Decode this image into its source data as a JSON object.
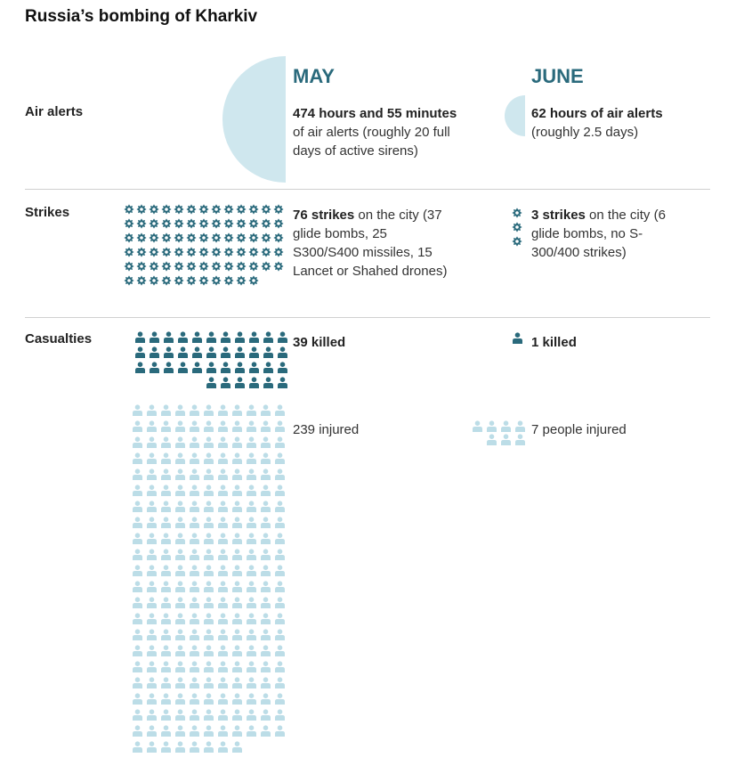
{
  "title": "Russia’s bombing of Kharkiv",
  "months": [
    "MAY",
    "JUNE"
  ],
  "rows": {
    "air_alerts": {
      "label": "Air alerts",
      "may": {
        "bold": "474 hours and 55 minutes",
        "rest": " of air alerts (roughly 20 full days of active sirens)"
      },
      "june": {
        "bold": "62 hours of air alerts",
        "rest": " (roughly 2.5 days)"
      }
    },
    "strikes": {
      "label": "Strikes",
      "may": {
        "bold": "76 strikes",
        "rest": " on the city (37 glide bombs, 25 S300/S400 missiles, 15 Lancet or Shahed drones)"
      },
      "june": {
        "bold": "3 strikes",
        "rest": " on the city (6 glide bombs, no S-300/400 strikes)"
      }
    },
    "casualties": {
      "label": "Casualties",
      "may_killed": "39 killed",
      "may_injured": "239 injured",
      "june_killed": "1 killed",
      "june_injured": "7 people injured"
    }
  },
  "chart_data": {
    "type": "table",
    "air_alert_hours": {
      "may": 474.92,
      "june": 62
    },
    "strikes": {
      "may": 76,
      "june": 3
    },
    "killed": {
      "may": 39,
      "june": 1
    },
    "injured": {
      "may": 239,
      "june": 7
    }
  },
  "colors": {
    "accent": "#2a6a7c",
    "half_circle": "#cfe7ee",
    "dark_icon": "#2a6a7c",
    "light_icon": "#bcdde7",
    "divider": "#d0d0d0"
  },
  "icons": {
    "strike": "explosion-icon",
    "person": "person-icon"
  }
}
